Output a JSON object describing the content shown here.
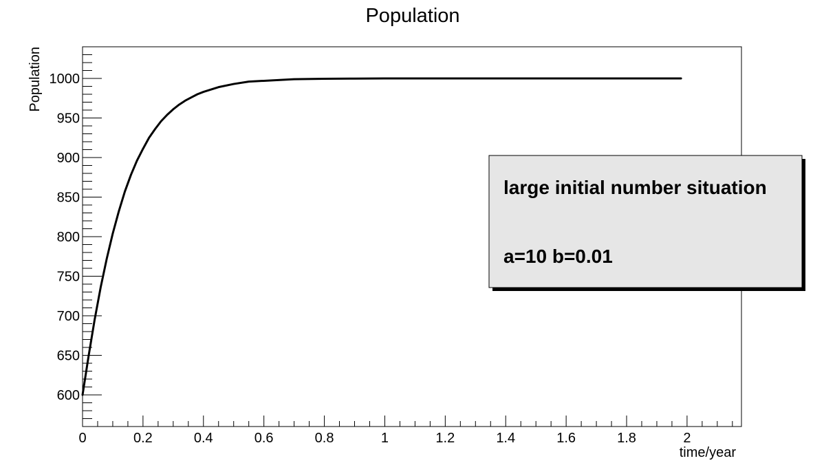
{
  "chart_data": {
    "type": "line",
    "title": "Population",
    "xlabel": "time/year",
    "ylabel": "Population",
    "xlim": [
      0,
      2.18
    ],
    "ylim": [
      560,
      1040
    ],
    "x_ticks": [
      0,
      0.2,
      0.4,
      0.6,
      0.8,
      1,
      1.2,
      1.4,
      1.6,
      1.8,
      2
    ],
    "x_tick_labels": [
      "0",
      "0.2",
      "0.4",
      "0.6",
      "0.8",
      "1",
      "1.2",
      "1.4",
      "1.6",
      "1.8",
      "2"
    ],
    "y_ticks": [
      600,
      650,
      700,
      750,
      800,
      850,
      900,
      950,
      1000
    ],
    "y_tick_labels": [
      "600",
      "650",
      "700",
      "750",
      "800",
      "850",
      "900",
      "950",
      "1000"
    ],
    "grid": false,
    "legend_position": "right",
    "series": [
      {
        "color": "#000000",
        "x": [
          0,
          0.02,
          0.04,
          0.06,
          0.08,
          0.1,
          0.12,
          0.14,
          0.16,
          0.18,
          0.2,
          0.22,
          0.24,
          0.26,
          0.28,
          0.3,
          0.32,
          0.34,
          0.36,
          0.38,
          0.4,
          0.45,
          0.5,
          0.55,
          0.6,
          0.7,
          0.8,
          0.9,
          1.0,
          1.2,
          1.4,
          1.6,
          1.8,
          1.98
        ],
        "y": [
          600,
          649,
          695,
          736,
          772,
          804,
          832,
          857,
          878,
          896,
          911,
          925,
          936,
          946,
          954,
          961,
          967,
          972,
          976,
          980,
          983,
          989,
          993,
          996,
          997,
          999,
          999.6,
          999.8,
          1000,
          1000,
          1000,
          1000,
          1000,
          1000
        ]
      }
    ],
    "annotations": [
      "large initial number situation",
      "a=10  b=0.01"
    ]
  },
  "colors": {
    "line": "#000000",
    "legend_fill": "#e6e6e6",
    "legend_shadow": "#000000",
    "frame": "#000000"
  }
}
